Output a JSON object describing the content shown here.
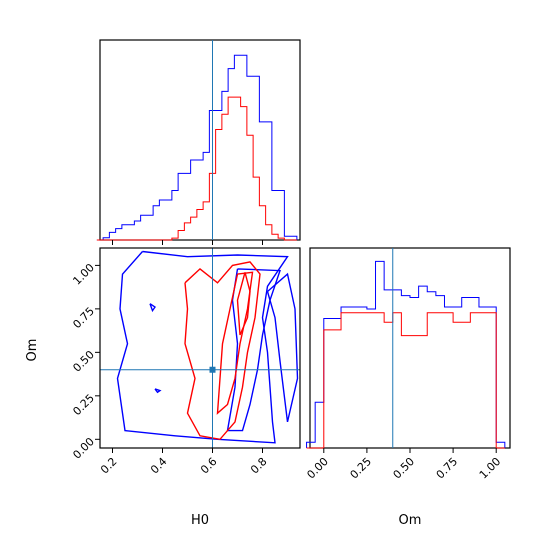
{
  "chart_data": [
    {
      "type": "histogram",
      "panel": "H0 marginal",
      "x": [
        0.15,
        0.175,
        0.2,
        0.225,
        0.25,
        0.275,
        0.3,
        0.325,
        0.35,
        0.375,
        0.4,
        0.425,
        0.45,
        0.475,
        0.5,
        0.525,
        0.55,
        0.575,
        0.6,
        0.625,
        0.65,
        0.675,
        0.7,
        0.725,
        0.75,
        0.775,
        0.8,
        0.825,
        0.85,
        0.875,
        0.9,
        0.925
      ],
      "xlim": [
        0.15,
        0.95
      ],
      "series": [
        {
          "color": "#0000ff",
          "values": [
            0,
            0.012,
            0.04,
            0.06,
            0.08,
            0.08,
            0.1,
            0.13,
            0.13,
            0.18,
            0.21,
            0.21,
            0.26,
            0.35,
            0.35,
            0.42,
            0.42,
            0.46,
            0.68,
            0.68,
            0.78,
            0.9,
            0.97,
            0.97,
            0.86,
            0.86,
            0.62,
            0.62,
            0.26,
            0.26,
            0.02,
            0.02
          ]
        },
        {
          "color": "#ff0000",
          "values": [
            0,
            0,
            0,
            0,
            0,
            0,
            0,
            0,
            0,
            0,
            0,
            0,
            0.01,
            0.05,
            0.09,
            0.12,
            0.16,
            0.2,
            0.35,
            0.58,
            0.66,
            0.75,
            0.75,
            0.7,
            0.55,
            0.33,
            0.18,
            0.08,
            0.03,
            0.01,
            0,
            0
          ]
        }
      ],
      "truth": 0.6
    },
    {
      "type": "contour",
      "panel": "H0 vs Om",
      "xlabel": "H0",
      "ylabel": "Om",
      "xlim": [
        0.15,
        0.95
      ],
      "ylim": [
        -0.05,
        1.1
      ],
      "xticks": [
        "0.2",
        "0.4",
        "0.6",
        "0.8"
      ],
      "yticks": [
        "0.00",
        "0.25",
        "0.50",
        "0.75",
        "1.00"
      ],
      "truth": [
        0.6,
        0.4
      ],
      "series": [
        {
          "color": "#0000ff",
          "contours": [
            [
              [
                0.32,
                1.08
              ],
              [
                0.5,
                1.05
              ],
              [
                0.7,
                1.06
              ],
              [
                0.9,
                1.05
              ],
              [
                0.82,
                0.88
              ],
              [
                0.8,
                0.7
              ],
              [
                0.82,
                0.5
              ],
              [
                0.83,
                0.3
              ],
              [
                0.84,
                0.1
              ],
              [
                0.85,
                -0.02
              ],
              [
                0.62,
                0.0
              ],
              [
                0.45,
                0.02
              ],
              [
                0.25,
                0.05
              ],
              [
                0.22,
                0.35
              ],
              [
                0.26,
                0.55
              ],
              [
                0.23,
                0.75
              ],
              [
                0.24,
                0.95
              ],
              [
                0.32,
                1.08
              ]
            ],
            [
              [
                0.7,
                0.98
              ],
              [
                0.87,
                0.97
              ],
              [
                0.83,
                0.8
              ],
              [
                0.8,
                0.6
              ],
              [
                0.78,
                0.4
              ],
              [
                0.75,
                0.2
              ],
              [
                0.72,
                0.05
              ],
              [
                0.66,
                0.05
              ],
              [
                0.69,
                0.3
              ],
              [
                0.7,
                0.55
              ],
              [
                0.68,
                0.8
              ],
              [
                0.7,
                0.98
              ]
            ],
            [
              [
                0.82,
                0.85
              ],
              [
                0.85,
                0.7
              ],
              [
                0.87,
                0.45
              ],
              [
                0.9,
                0.1
              ],
              [
                0.94,
                0.35
              ],
              [
                0.93,
                0.75
              ],
              [
                0.9,
                0.95
              ],
              [
                0.82,
                0.85
              ]
            ],
            [
              [
                0.37,
                0.29
              ],
              [
                0.39,
                0.28
              ],
              [
                0.38,
                0.27
              ],
              [
                0.37,
                0.29
              ]
            ],
            [
              [
                0.35,
                0.78
              ],
              [
                0.37,
                0.76
              ],
              [
                0.36,
                0.74
              ],
              [
                0.35,
                0.78
              ]
            ]
          ]
        },
        {
          "color": "#ff0000",
          "contours": [
            [
              [
                0.49,
                0.9
              ],
              [
                0.55,
                0.98
              ],
              [
                0.62,
                0.9
              ],
              [
                0.68,
                1.0
              ],
              [
                0.75,
                1.02
              ],
              [
                0.79,
                0.95
              ],
              [
                0.77,
                0.7
              ],
              [
                0.74,
                0.5
              ],
              [
                0.72,
                0.3
              ],
              [
                0.69,
                0.1
              ],
              [
                0.63,
                0.0
              ],
              [
                0.55,
                0.02
              ],
              [
                0.5,
                0.15
              ],
              [
                0.53,
                0.35
              ],
              [
                0.49,
                0.55
              ],
              [
                0.5,
                0.75
              ],
              [
                0.49,
                0.9
              ]
            ],
            [
              [
                0.7,
                0.95
              ],
              [
                0.76,
                0.96
              ],
              [
                0.74,
                0.75
              ],
              [
                0.71,
                0.55
              ],
              [
                0.69,
                0.35
              ],
              [
                0.66,
                0.2
              ],
              [
                0.62,
                0.15
              ],
              [
                0.63,
                0.35
              ],
              [
                0.64,
                0.55
              ],
              [
                0.67,
                0.75
              ],
              [
                0.7,
                0.95
              ]
            ],
            [
              [
                0.73,
                0.96
              ],
              [
                0.75,
                0.85
              ],
              [
                0.74,
                0.7
              ],
              [
                0.71,
                0.6
              ],
              [
                0.7,
                0.8
              ],
              [
                0.73,
                0.96
              ]
            ]
          ]
        }
      ]
    },
    {
      "type": "histogram",
      "panel": "Om marginal",
      "xlabel": "Om",
      "xlim": [
        -0.08,
        1.08
      ],
      "xticks": [
        "0.00",
        "0.25",
        "0.50",
        "0.75",
        "1.00"
      ],
      "x": [
        -0.075,
        -0.025,
        0.025,
        0.075,
        0.125,
        0.175,
        0.225,
        0.275,
        0.325,
        0.375,
        0.425,
        0.475,
        0.525,
        0.575,
        0.625,
        0.675,
        0.725,
        0.775,
        0.825,
        0.875,
        0.925,
        0.975,
        1.025
      ],
      "series": [
        {
          "color": "#0000ff",
          "values": [
            0.03,
            0.24,
            0.68,
            0.68,
            0.74,
            0.74,
            0.74,
            0.73,
            0.98,
            0.83,
            0.83,
            0.8,
            0.79,
            0.85,
            0.82,
            0.8,
            0.74,
            0.74,
            0.79,
            0.79,
            0.74,
            0.74,
            0.03
          ]
        },
        {
          "color": "#ff0000",
          "values": [
            0,
            0,
            0.62,
            0.62,
            0.71,
            0.71,
            0.71,
            0.71,
            0.71,
            0.66,
            0.71,
            0.59,
            0.59,
            0.59,
            0.71,
            0.71,
            0.71,
            0.66,
            0.66,
            0.71,
            0.71,
            0.71,
            0
          ]
        }
      ],
      "truth": 0.4
    }
  ]
}
